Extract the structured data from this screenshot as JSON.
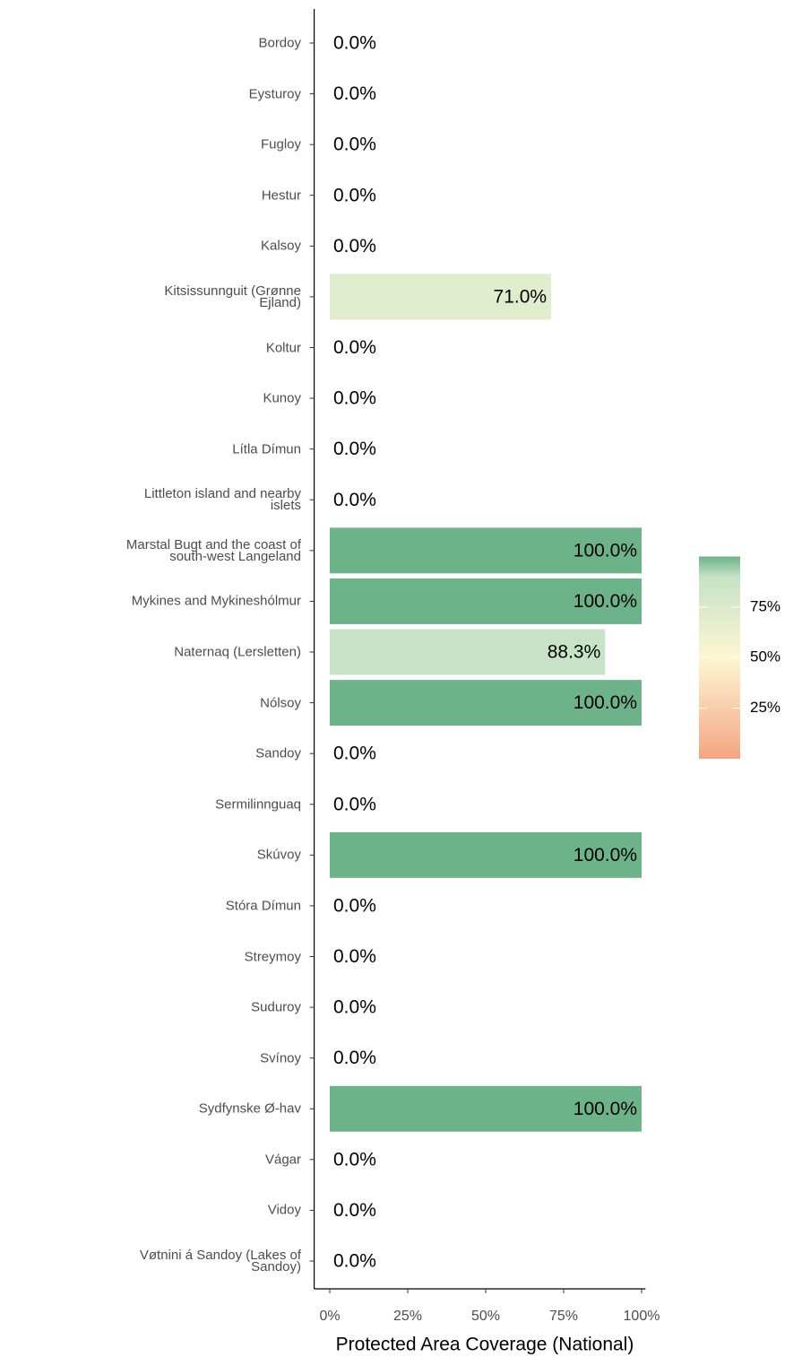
{
  "chart_data": {
    "type": "bar",
    "orientation": "horizontal",
    "xlabel": "Protected Area Coverage (National)",
    "categories": [
      "Bordoy",
      "Eysturoy",
      "Fugloy",
      "Hestur",
      "Kalsoy",
      "Kitsissunnguit (Grønne\nEjland)",
      "Koltur",
      "Kunoy",
      "Lítla Dímun",
      "Littleton island and nearby\nislets",
      "Marstal Bugt and the coast of\nsouth-west Langeland",
      "Mykines and Mykineshólmur",
      "Naternaq (Lersletten)",
      "Nólsoy",
      "Sandoy",
      "Sermilinnguaq",
      "Skúvoy",
      "Stóra Dímun",
      "Streymoy",
      "Suduroy",
      "Svínoy",
      "Sydfynske Ø-hav",
      "Vágar",
      "Vidoy",
      "Vøtnini á Sandoy (Lakes of\nSandoy)"
    ],
    "values": [
      0,
      0,
      0,
      0,
      0,
      71,
      0,
      0,
      0,
      0,
      100,
      100,
      88.3,
      100,
      0,
      0,
      100,
      0,
      0,
      0,
      0,
      100,
      0,
      0,
      0
    ],
    "value_labels": [
      "0.0%",
      "0.0%",
      "0.0%",
      "0.0%",
      "0.0%",
      "71.0%",
      "0.0%",
      "0.0%",
      "0.0%",
      "0.0%",
      "100.0%",
      "100.0%",
      "88.3%",
      "100.0%",
      "0.0%",
      "0.0%",
      "100.0%",
      "0.0%",
      "0.0%",
      "0.0%",
      "0.0%",
      "100.0%",
      "0.0%",
      "0.0%",
      "0.0%"
    ],
    "xlim": [
      -5,
      105
    ],
    "xticks": [
      {
        "value": 0,
        "label": "0%"
      },
      {
        "value": 25,
        "label": "25%"
      },
      {
        "value": 50,
        "label": "50%"
      },
      {
        "value": 75,
        "label": "75%"
      },
      {
        "value": 100,
        "label": "100%"
      }
    ],
    "color_stops": [
      {
        "value": 0,
        "color": "#f4a582"
      },
      {
        "value": 50,
        "color": "#fdf6d3"
      },
      {
        "value": 90,
        "color": "#c5e2c5"
      },
      {
        "value": 100,
        "color": "#6db38a"
      }
    ],
    "colorbar_lim": [
      0,
      100
    ],
    "colorbar_ticks": [
      {
        "value": 25,
        "label": "25%"
      },
      {
        "value": 50,
        "label": "50%"
      },
      {
        "value": 75,
        "label": "75%"
      }
    ]
  }
}
